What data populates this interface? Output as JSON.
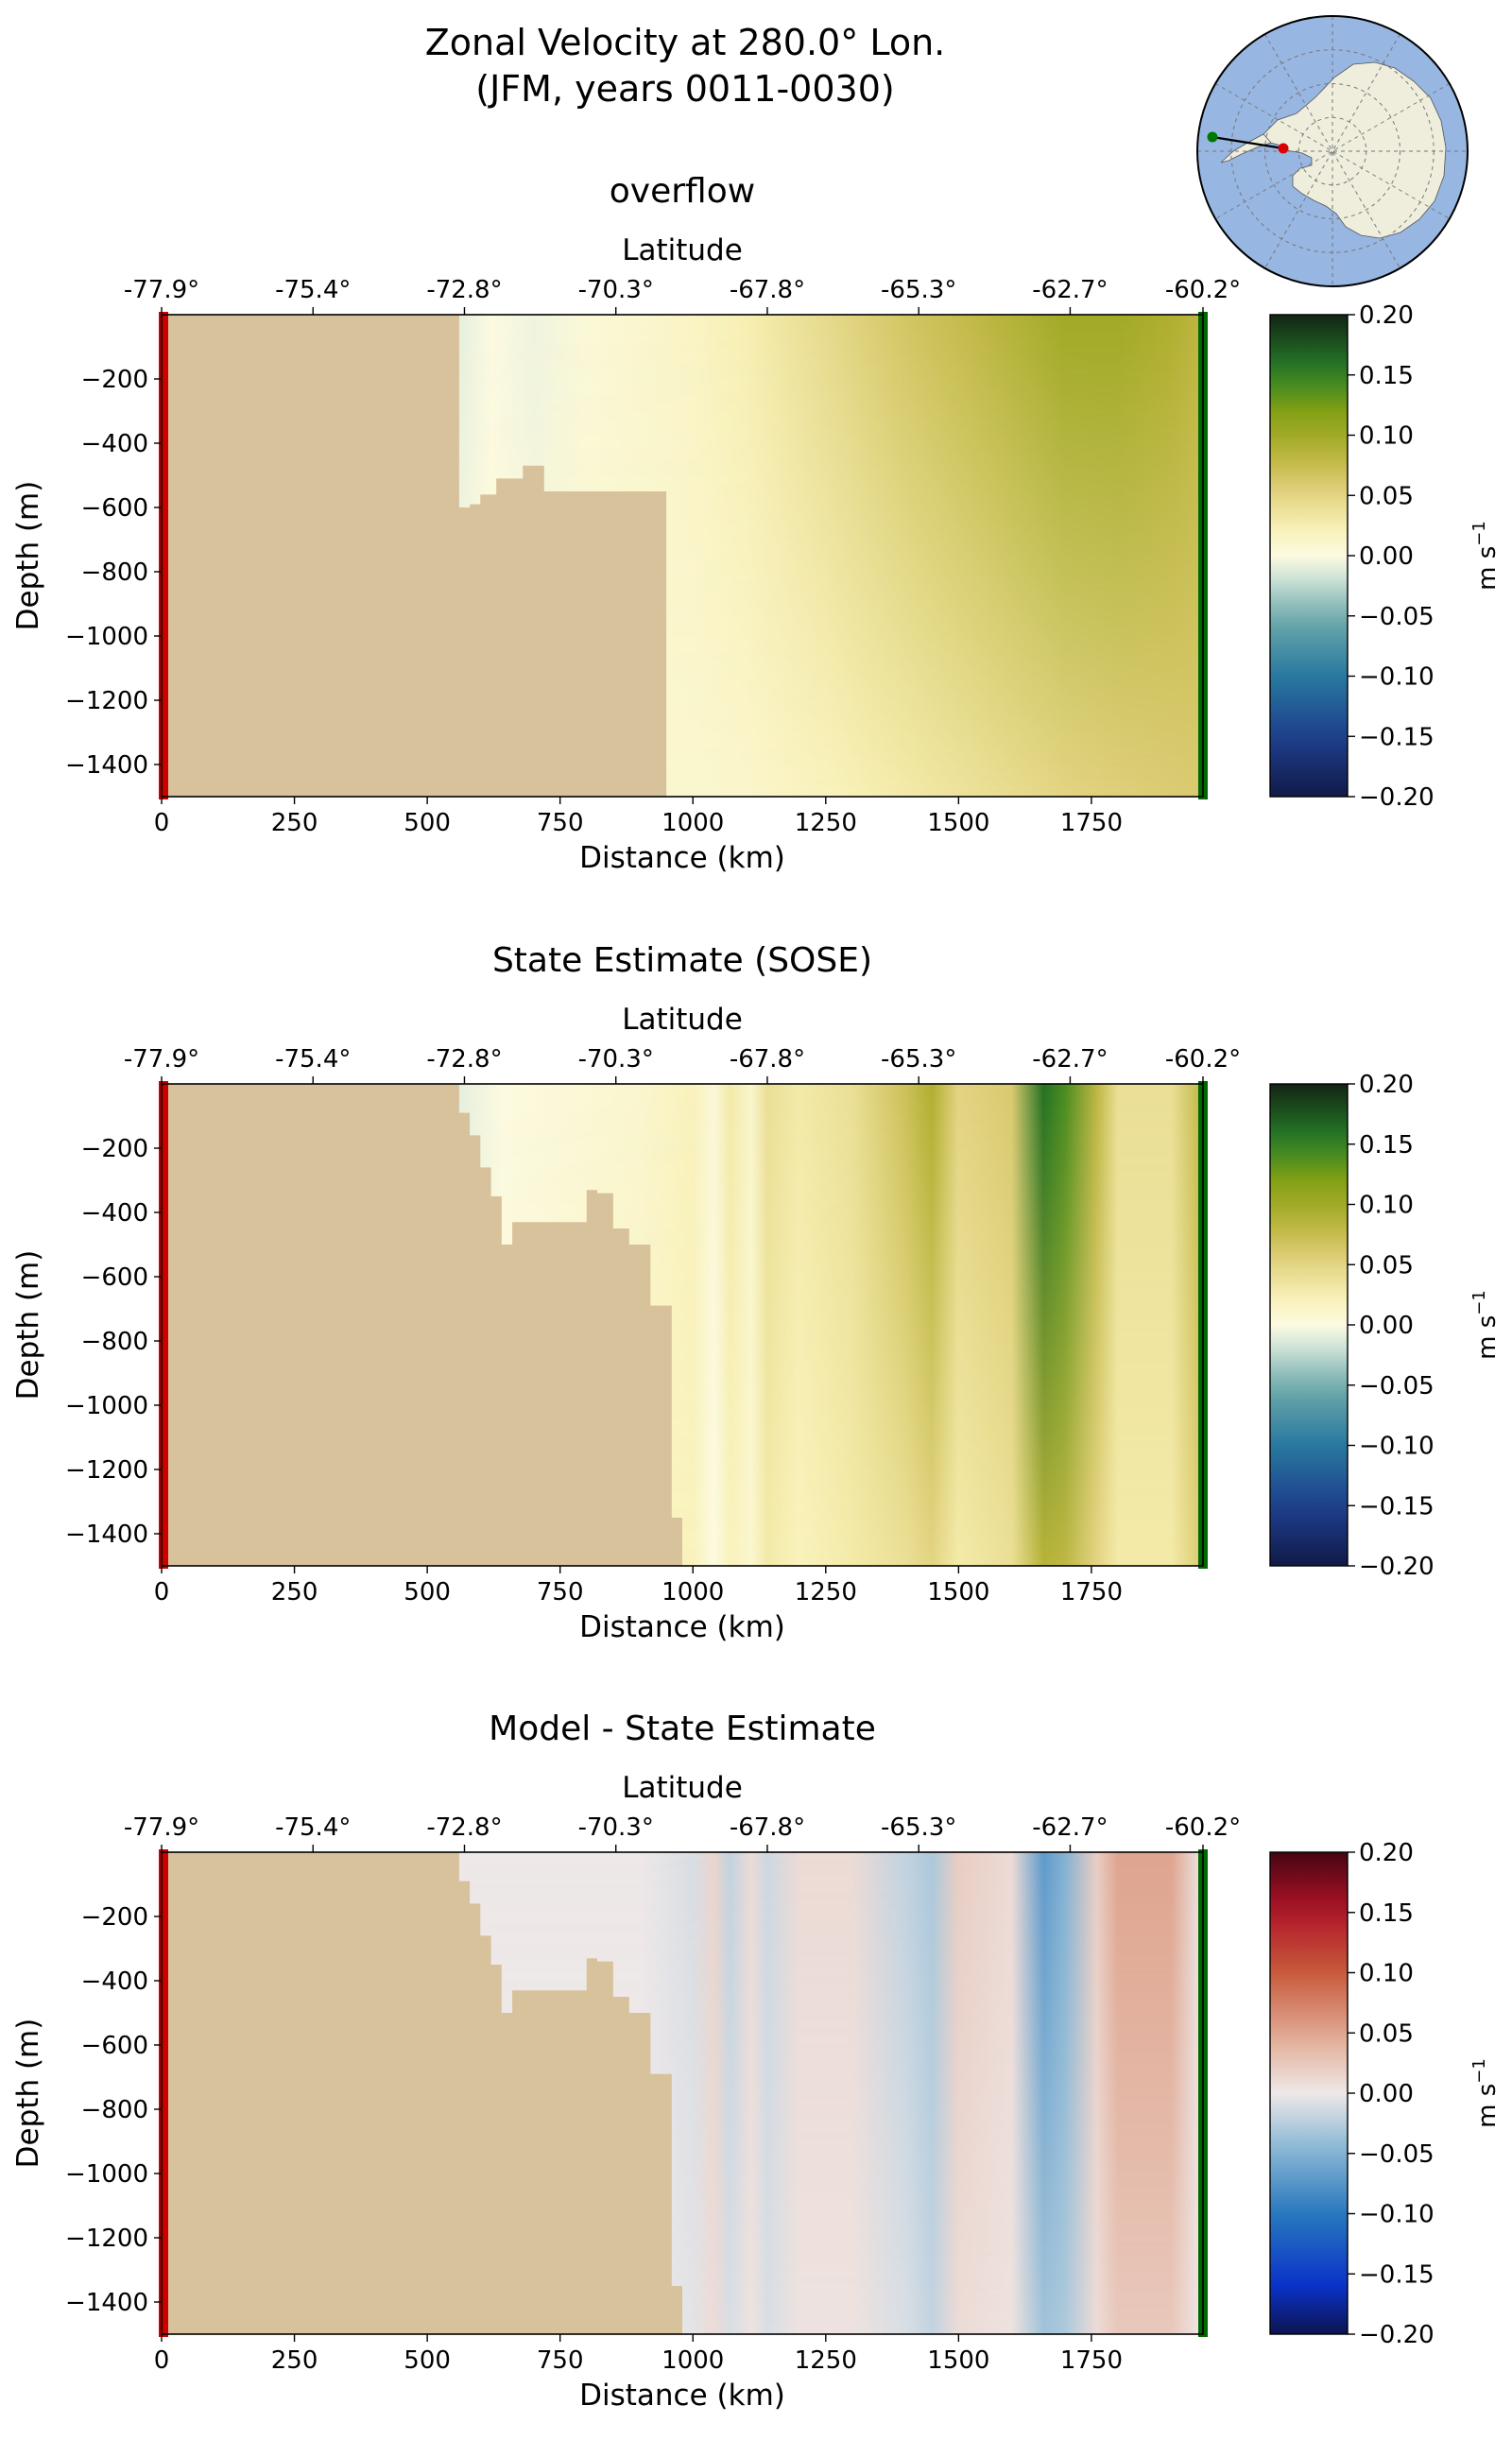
{
  "figure": {
    "title_line1": "Zonal Velocity at 280.0° Lon.",
    "title_line2": "(JFM, years 0011-0030)"
  },
  "colors": {
    "land": "#d8c29b",
    "ocean_map": "#97b6e1",
    "continent_map": "#efeedd",
    "section_start_marker": "#cc0000",
    "section_end_marker": "#006600"
  },
  "chart_data": [
    {
      "type": "heatmap",
      "title": "overflow",
      "xlabel": "Distance (km)",
      "ylabel": "Depth (m)",
      "top_xlabel": "Latitude",
      "xlim": [
        0,
        1960
      ],
      "ylim": [
        -1500,
        0
      ],
      "xticks": [
        0,
        250,
        500,
        750,
        1000,
        1250,
        1500,
        1750
      ],
      "xtick_labels": [
        "0",
        "250",
        "500",
        "750",
        "1000",
        "1250",
        "1500",
        "1750"
      ],
      "yticks": [
        -200,
        -400,
        -600,
        -800,
        -1000,
        -1200,
        -1400
      ],
      "ytick_labels": [
        "−200",
        "−400",
        "−600",
        "−800",
        "−1000",
        "−1200",
        "−1400"
      ],
      "latitude_ticks_km": [
        0,
        285,
        570,
        855,
        1140,
        1425,
        1710,
        1960
      ],
      "latitude_labels": [
        "-77.9°",
        "-75.4°",
        "-72.8°",
        "-70.3°",
        "-67.8°",
        "-65.3°",
        "-62.7°",
        "-60.2°"
      ],
      "colorbar": {
        "label": "m s",
        "label_exp": "−1",
        "colormap": "gist_earth_r",
        "range": [
          -0.2,
          0.2
        ],
        "ticks": [
          0.2,
          0.15,
          0.1,
          0.05,
          0.0,
          -0.05,
          -0.1,
          -0.15,
          -0.2
        ],
        "tick_labels": [
          "0.20",
          "0.15",
          "0.10",
          "0.05",
          "0.00",
          "−0.05",
          "−0.10",
          "−0.15",
          "−0.20"
        ]
      },
      "velocity_profile_km": [
        0,
        560,
        620,
        700,
        800,
        900,
        1000,
        1100,
        1250,
        1400,
        1550,
        1700,
        1800,
        1900,
        1960
      ],
      "velocity_surface_ms": [
        0.0,
        -0.01,
        0.0,
        -0.005,
        0.005,
        0.01,
        0.015,
        0.025,
        0.045,
        0.065,
        0.08,
        0.1,
        0.1,
        0.09,
        0.08
      ],
      "velocity_bottom_ms": [
        0.0,
        0.0,
        0.005,
        0.005,
        0.01,
        0.01,
        0.01,
        0.012,
        0.02,
        0.03,
        0.04,
        0.05,
        0.055,
        0.058,
        0.06
      ],
      "bathymetry_km": [
        0,
        560,
        560,
        580,
        580,
        600,
        600,
        630,
        630,
        680,
        680,
        720,
        720,
        860,
        860,
        950,
        950,
        1960
      ],
      "bathymetry_depth_m": [
        0,
        0,
        -600,
        -600,
        -590,
        -590,
        -560,
        -560,
        -510,
        -510,
        -470,
        -470,
        -550,
        -550,
        -550,
        -550,
        -1500,
        -1500
      ]
    },
    {
      "type": "heatmap",
      "title": "State Estimate (SOSE)",
      "xlabel": "Distance (km)",
      "ylabel": "Depth (m)",
      "top_xlabel": "Latitude",
      "xlim": [
        0,
        1960
      ],
      "ylim": [
        -1500,
        0
      ],
      "xticks": [
        0,
        250,
        500,
        750,
        1000,
        1250,
        1500,
        1750
      ],
      "xtick_labels": [
        "0",
        "250",
        "500",
        "750",
        "1000",
        "1250",
        "1500",
        "1750"
      ],
      "yticks": [
        -200,
        -400,
        -600,
        -800,
        -1000,
        -1200,
        -1400
      ],
      "ytick_labels": [
        "−200",
        "−400",
        "−600",
        "−800",
        "−1000",
        "−1200",
        "−1400"
      ],
      "latitude_ticks_km": [
        0,
        285,
        570,
        855,
        1140,
        1425,
        1710,
        1960
      ],
      "latitude_labels": [
        "-77.9°",
        "-75.4°",
        "-72.8°",
        "-70.3°",
        "-67.8°",
        "-65.3°",
        "-62.7°",
        "-60.2°"
      ],
      "colorbar": {
        "label": "m s",
        "label_exp": "−1",
        "colormap": "gist_earth_r",
        "range": [
          -0.2,
          0.2
        ],
        "ticks": [
          0.2,
          0.15,
          0.1,
          0.05,
          0.0,
          -0.05,
          -0.1,
          -0.15,
          -0.2
        ],
        "tick_labels": [
          "0.20",
          "0.15",
          "0.10",
          "0.05",
          "0.00",
          "−0.05",
          "−0.10",
          "−0.15",
          "−0.20"
        ]
      },
      "velocity_profile_km": [
        0,
        560,
        640,
        760,
        900,
        1000,
        1040,
        1070,
        1110,
        1140,
        1200,
        1300,
        1400,
        1450,
        1500,
        1600,
        1660,
        1700,
        1760,
        1800,
        1900,
        1960
      ],
      "velocity_surface_ms": [
        0.0,
        -0.01,
        0.0,
        0.005,
        0.01,
        0.02,
        0.005,
        0.03,
        0.01,
        0.04,
        0.03,
        0.04,
        0.07,
        0.09,
        0.05,
        0.06,
        0.16,
        0.14,
        0.08,
        0.04,
        0.04,
        0.08
      ],
      "velocity_bottom_ms": [
        0.0,
        0.0,
        0.005,
        0.01,
        0.015,
        0.02,
        0.0,
        0.02,
        0.01,
        0.03,
        0.02,
        0.03,
        0.04,
        0.05,
        0.03,
        0.04,
        0.085,
        0.08,
        0.05,
        0.03,
        0.03,
        0.06
      ],
      "bathymetry_km": [
        0,
        560,
        560,
        580,
        580,
        600,
        600,
        620,
        620,
        640,
        640,
        660,
        660,
        720,
        720,
        800,
        800,
        820,
        820,
        850,
        850,
        880,
        880,
        920,
        920,
        960,
        960,
        980,
        980,
        1960
      ],
      "bathymetry_depth_m": [
        0,
        0,
        -90,
        -90,
        -160,
        -160,
        -260,
        -260,
        -350,
        -350,
        -500,
        -500,
        -430,
        -430,
        -430,
        -430,
        -330,
        -330,
        -340,
        -340,
        -450,
        -450,
        -500,
        -500,
        -690,
        -690,
        -1350,
        -1350,
        -1500,
        -1500
      ]
    },
    {
      "type": "heatmap",
      "title": "Model - State Estimate",
      "xlabel": "Distance (km)",
      "ylabel": "Depth (m)",
      "top_xlabel": "Latitude",
      "xlim": [
        0,
        1960
      ],
      "ylim": [
        -1500,
        0
      ],
      "xticks": [
        0,
        250,
        500,
        750,
        1000,
        1250,
        1500,
        1750
      ],
      "xtick_labels": [
        "0",
        "250",
        "500",
        "750",
        "1000",
        "1250",
        "1500",
        "1750"
      ],
      "yticks": [
        -200,
        -400,
        -600,
        -800,
        -1000,
        -1200,
        -1400
      ],
      "ytick_labels": [
        "−200",
        "−400",
        "−600",
        "−800",
        "−1000",
        "−1200",
        "−1400"
      ],
      "latitude_ticks_km": [
        0,
        285,
        570,
        855,
        1140,
        1425,
        1710,
        1960
      ],
      "latitude_labels": [
        "-77.9°",
        "-75.4°",
        "-72.8°",
        "-70.3°",
        "-67.8°",
        "-65.3°",
        "-62.7°",
        "-60.2°"
      ],
      "colorbar": {
        "label": "m s",
        "label_exp": "−1",
        "colormap": "RdBu_r",
        "range": [
          -0.2,
          0.2
        ],
        "ticks": [
          0.2,
          0.15,
          0.1,
          0.05,
          0.0,
          -0.05,
          -0.1,
          -0.15,
          -0.2
        ],
        "tick_labels": [
          "0.20",
          "0.15",
          "0.10",
          "0.05",
          "0.00",
          "−0.05",
          "−0.10",
          "−0.15",
          "−0.20"
        ]
      },
      "velocity_profile_km": [
        0,
        560,
        900,
        1000,
        1040,
        1070,
        1110,
        1140,
        1200,
        1300,
        1400,
        1450,
        1500,
        1600,
        1660,
        1700,
        1760,
        1800,
        1900,
        1960
      ],
      "velocity_surface_ms": [
        0.0,
        0.0,
        0.0,
        -0.01,
        0.015,
        -0.02,
        0.01,
        -0.015,
        0.01,
        0.01,
        -0.02,
        -0.03,
        0.02,
        0.01,
        -0.07,
        -0.05,
        0.02,
        0.05,
        0.05,
        0.0
      ],
      "velocity_bottom_ms": [
        0.0,
        0.0,
        0.0,
        -0.005,
        0.01,
        -0.01,
        0.005,
        -0.01,
        0.005,
        0.005,
        -0.01,
        -0.02,
        0.01,
        0.005,
        -0.035,
        -0.03,
        0.01,
        0.025,
        0.025,
        0.0
      ],
      "bathymetry_km": [
        0,
        560,
        560,
        580,
        580,
        600,
        600,
        620,
        620,
        640,
        640,
        660,
        660,
        720,
        720,
        800,
        800,
        820,
        820,
        850,
        850,
        880,
        880,
        920,
        920,
        960,
        960,
        980,
        980,
        1960
      ],
      "bathymetry_depth_m": [
        0,
        0,
        -90,
        -90,
        -160,
        -160,
        -260,
        -260,
        -350,
        -350,
        -500,
        -500,
        -430,
        -430,
        -430,
        -430,
        -330,
        -330,
        -340,
        -340,
        -450,
        -450,
        -500,
        -500,
        -690,
        -690,
        -1350,
        -1350,
        -1500,
        -1500
      ]
    }
  ],
  "inset_map": {
    "type": "polar-stereographic",
    "section_start_marker_color": "#007700",
    "section_end_marker_color": "#dd0000"
  }
}
